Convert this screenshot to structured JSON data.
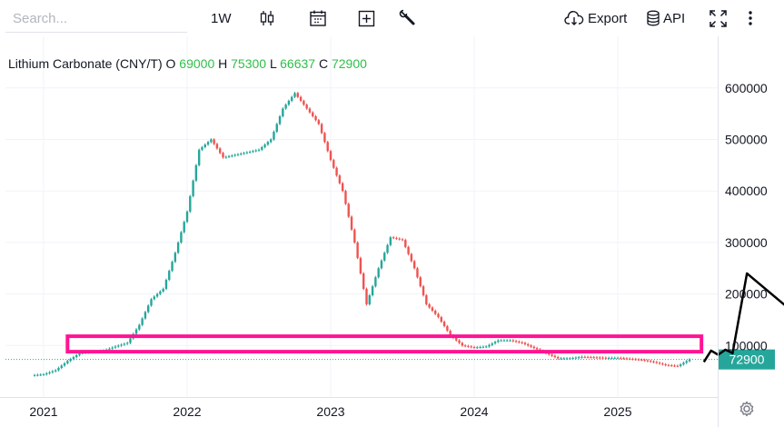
{
  "toolbar": {
    "search_placeholder": "Search...",
    "interval": "1W",
    "export_label": "Export",
    "api_label": "API",
    "icons": [
      "candles-icon",
      "calendar-icon",
      "plus-square-icon",
      "wrench-icon",
      "cloud-download-icon",
      "database-icon",
      "fullscreen-icon",
      "more-vertical-icon"
    ]
  },
  "legend": {
    "symbol": "Lithium Carbonate (CNY/T)",
    "o_label": "O",
    "o": "69000",
    "h_label": "H",
    "h": "75300",
    "l_label": "L",
    "l": "66637",
    "c_label": "C",
    "c": "72900"
  },
  "colors": {
    "up": "#26a69a",
    "down": "#ef5350",
    "highlight": "#ff1493",
    "annotation": "#000000",
    "last_price_bg": "#26a69a",
    "legend_values": "#2fbf4a"
  },
  "chart_data": {
    "type": "candlestick",
    "title": "Lithium Carbonate (CNY/T)",
    "interval": "1W",
    "ylim": [
      0,
      630000
    ],
    "y_ticks": [
      "600000",
      "500000",
      "400000",
      "300000",
      "200000",
      "100000"
    ],
    "x_ticks": [
      "2021",
      "2022",
      "2023",
      "2024",
      "2025"
    ],
    "last_price": "72900",
    "series": [
      {
        "x": [
          "2020-12",
          "2021-01",
          "2021-02",
          "2021-03",
          "2021-04",
          "2021-05",
          "2021-06",
          "2021-07",
          "2021-08",
          "2021-09",
          "2021-10",
          "2021-11",
          "2021-12",
          "2022-01",
          "2022-02",
          "2022-03",
          "2022-04",
          "2022-05",
          "2022-06",
          "2022-07",
          "2022-08",
          "2022-09",
          "2022-10",
          "2022-11",
          "2022-12",
          "2023-01",
          "2023-02",
          "2023-03",
          "2023-04",
          "2023-05",
          "2023-06",
          "2023-07",
          "2023-08",
          "2023-09",
          "2023-10",
          "2023-11",
          "2023-12",
          "2024-01",
          "2024-02",
          "2024-03",
          "2024-04",
          "2024-05",
          "2024-06",
          "2024-07",
          "2024-08",
          "2024-09",
          "2024-10",
          "2024-11",
          "2024-12",
          "2025-01",
          "2025-02",
          "2025-03",
          "2025-04",
          "2025-05",
          "2025-06",
          "2025-07"
        ],
        "close": [
          42000,
          44000,
          52000,
          70000,
          85000,
          88000,
          90000,
          98000,
          105000,
          140000,
          190000,
          210000,
          280000,
          360000,
          480000,
          500000,
          465000,
          470000,
          475000,
          480000,
          500000,
          560000,
          590000,
          560000,
          530000,
          460000,
          400000,
          300000,
          180000,
          250000,
          310000,
          305000,
          250000,
          180000,
          155000,
          120000,
          100000,
          96000,
          98000,
          110000,
          110000,
          105000,
          95000,
          85000,
          75000,
          75000,
          78000,
          77000,
          76000,
          76000,
          74000,
          72000,
          68000,
          62000,
          60000,
          72900
        ]
      }
    ],
    "annotations": [
      {
        "type": "rectangle",
        "y_range": [
          88000,
          118000
        ],
        "x_range": [
          "2021-03",
          "2025-08"
        ]
      },
      {
        "type": "projection-path",
        "points": [
          [
            2025.6,
            68000
          ],
          [
            2025.65,
            90000
          ],
          [
            2025.7,
            82000
          ],
          [
            2025.75,
            92000
          ],
          [
            2025.8,
            85000
          ],
          [
            2025.9,
            240000
          ],
          [
            2026.2,
            170000
          ]
        ]
      }
    ]
  }
}
